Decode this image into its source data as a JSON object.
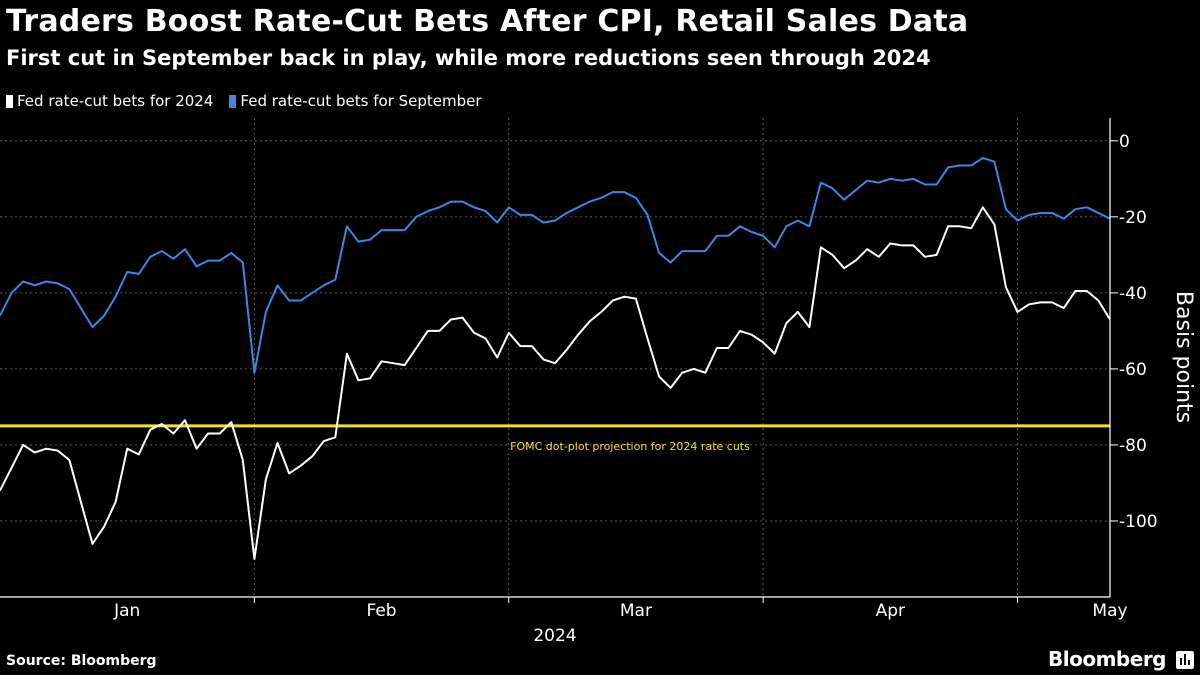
{
  "header": {
    "title": "Traders Boost Rate-Cut Bets After CPI, Retail Sales Data",
    "subtitle": "First cut in September back in play, while more reductions seen through 2024"
  },
  "footer": {
    "source": "Source: Bloomberg",
    "brand": "Bloomberg"
  },
  "chart_data": {
    "type": "line",
    "title": "Traders Boost Rate-Cut Bets After CPI, Retail Sales Data",
    "subtitle": "First cut in September back in play, while more reductions seen through 2024",
    "ylabel": "Basis points",
    "xlabel": "2024",
    "ylim": [
      -120,
      6
    ],
    "yticks": [
      0,
      -20,
      -40,
      -60,
      -80,
      -100
    ],
    "ytick_labels": [
      "0",
      "-20",
      "-40",
      "-60",
      "-80",
      "-100"
    ],
    "x_month_labels": [
      "Jan",
      "Feb",
      "Mar",
      "Apr",
      "May"
    ],
    "x_year_label": "2024",
    "grid": true,
    "legend_position": "top-left",
    "reference_line": {
      "value": -75,
      "label": "FOMC dot-plot projection for 2024 rate cuts",
      "color": "#f3e02a"
    },
    "series": [
      {
        "name": "Fed rate-cut bets for 2024",
        "color": "#ffffff",
        "values": [
          -92,
          -86,
          -80,
          -82,
          -81,
          -81.5,
          -84,
          -95,
          -106,
          -101.5,
          -95,
          -81,
          -82.5,
          -76,
          -74.5,
          -77,
          -73.5,
          -81,
          -77,
          -77,
          -74,
          -84,
          -110,
          -89,
          -79.5,
          -87.5,
          -85.5,
          -83,
          -79,
          -78,
          -56,
          -63,
          -62.5,
          -58,
          -58.5,
          -59,
          -54.5,
          -50,
          -50,
          -47,
          -46.5,
          -50.5,
          -52,
          -57,
          -50.5,
          -54,
          -54,
          -57.5,
          -58.5,
          -55,
          -51,
          -47.5,
          -45,
          -42,
          -41,
          -41.5,
          -52,
          -62,
          -65,
          -61,
          -60,
          -61,
          -54.5,
          -54.5,
          -50,
          -51,
          -53,
          -56,
          -48,
          -45,
          -49,
          -28,
          -30,
          -33.5,
          -31.5,
          -28.5,
          -30.5,
          -27,
          -27.5,
          -27.5,
          -30.5,
          -30,
          -22.5,
          -22.5,
          -23,
          -17.5,
          -22,
          -38.5,
          -45,
          -43,
          -42.5,
          -42.5,
          -44,
          -39.5,
          -39.5,
          -42,
          -47
        ]
      },
      {
        "name": "Fed rate-cut bets for September",
        "color": "#3d86e3",
        "values": [
          -46,
          -40,
          -37,
          -38,
          -37,
          -37.5,
          -39,
          -44,
          -49,
          -46,
          -41,
          -34.5,
          -35,
          -30.5,
          -29,
          -31,
          -28.5,
          -33,
          -31.5,
          -31.5,
          -29.5,
          -32,
          -61,
          -45,
          -38,
          -42,
          -42,
          -40,
          -38,
          -36.5,
          -22.5,
          -26.5,
          -26,
          -23.5,
          -23.5,
          -23.5,
          -20,
          -18.5,
          -17.5,
          -16,
          -16,
          -17.5,
          -18.5,
          -21.5,
          -17.5,
          -19.5,
          -19.5,
          -21.5,
          -21,
          -19,
          -17.5,
          -16,
          -15,
          -13.5,
          -13.5,
          -15,
          -19.5,
          -29.5,
          -32,
          -29,
          -29,
          -29,
          -25,
          -25,
          -22.5,
          -24,
          -25,
          -28,
          -22.5,
          -21,
          -22.5,
          -11,
          -12.5,
          -15.5,
          -13,
          -10.5,
          -11,
          -10,
          -10.5,
          -10,
          -11.5,
          -11.5,
          -7,
          -6.5,
          -6.5,
          -4.5,
          -5.5,
          -18,
          -21,
          -19.5,
          -19,
          -19,
          -20.5,
          -18,
          -17.5,
          -19,
          -20.5
        ]
      }
    ]
  }
}
